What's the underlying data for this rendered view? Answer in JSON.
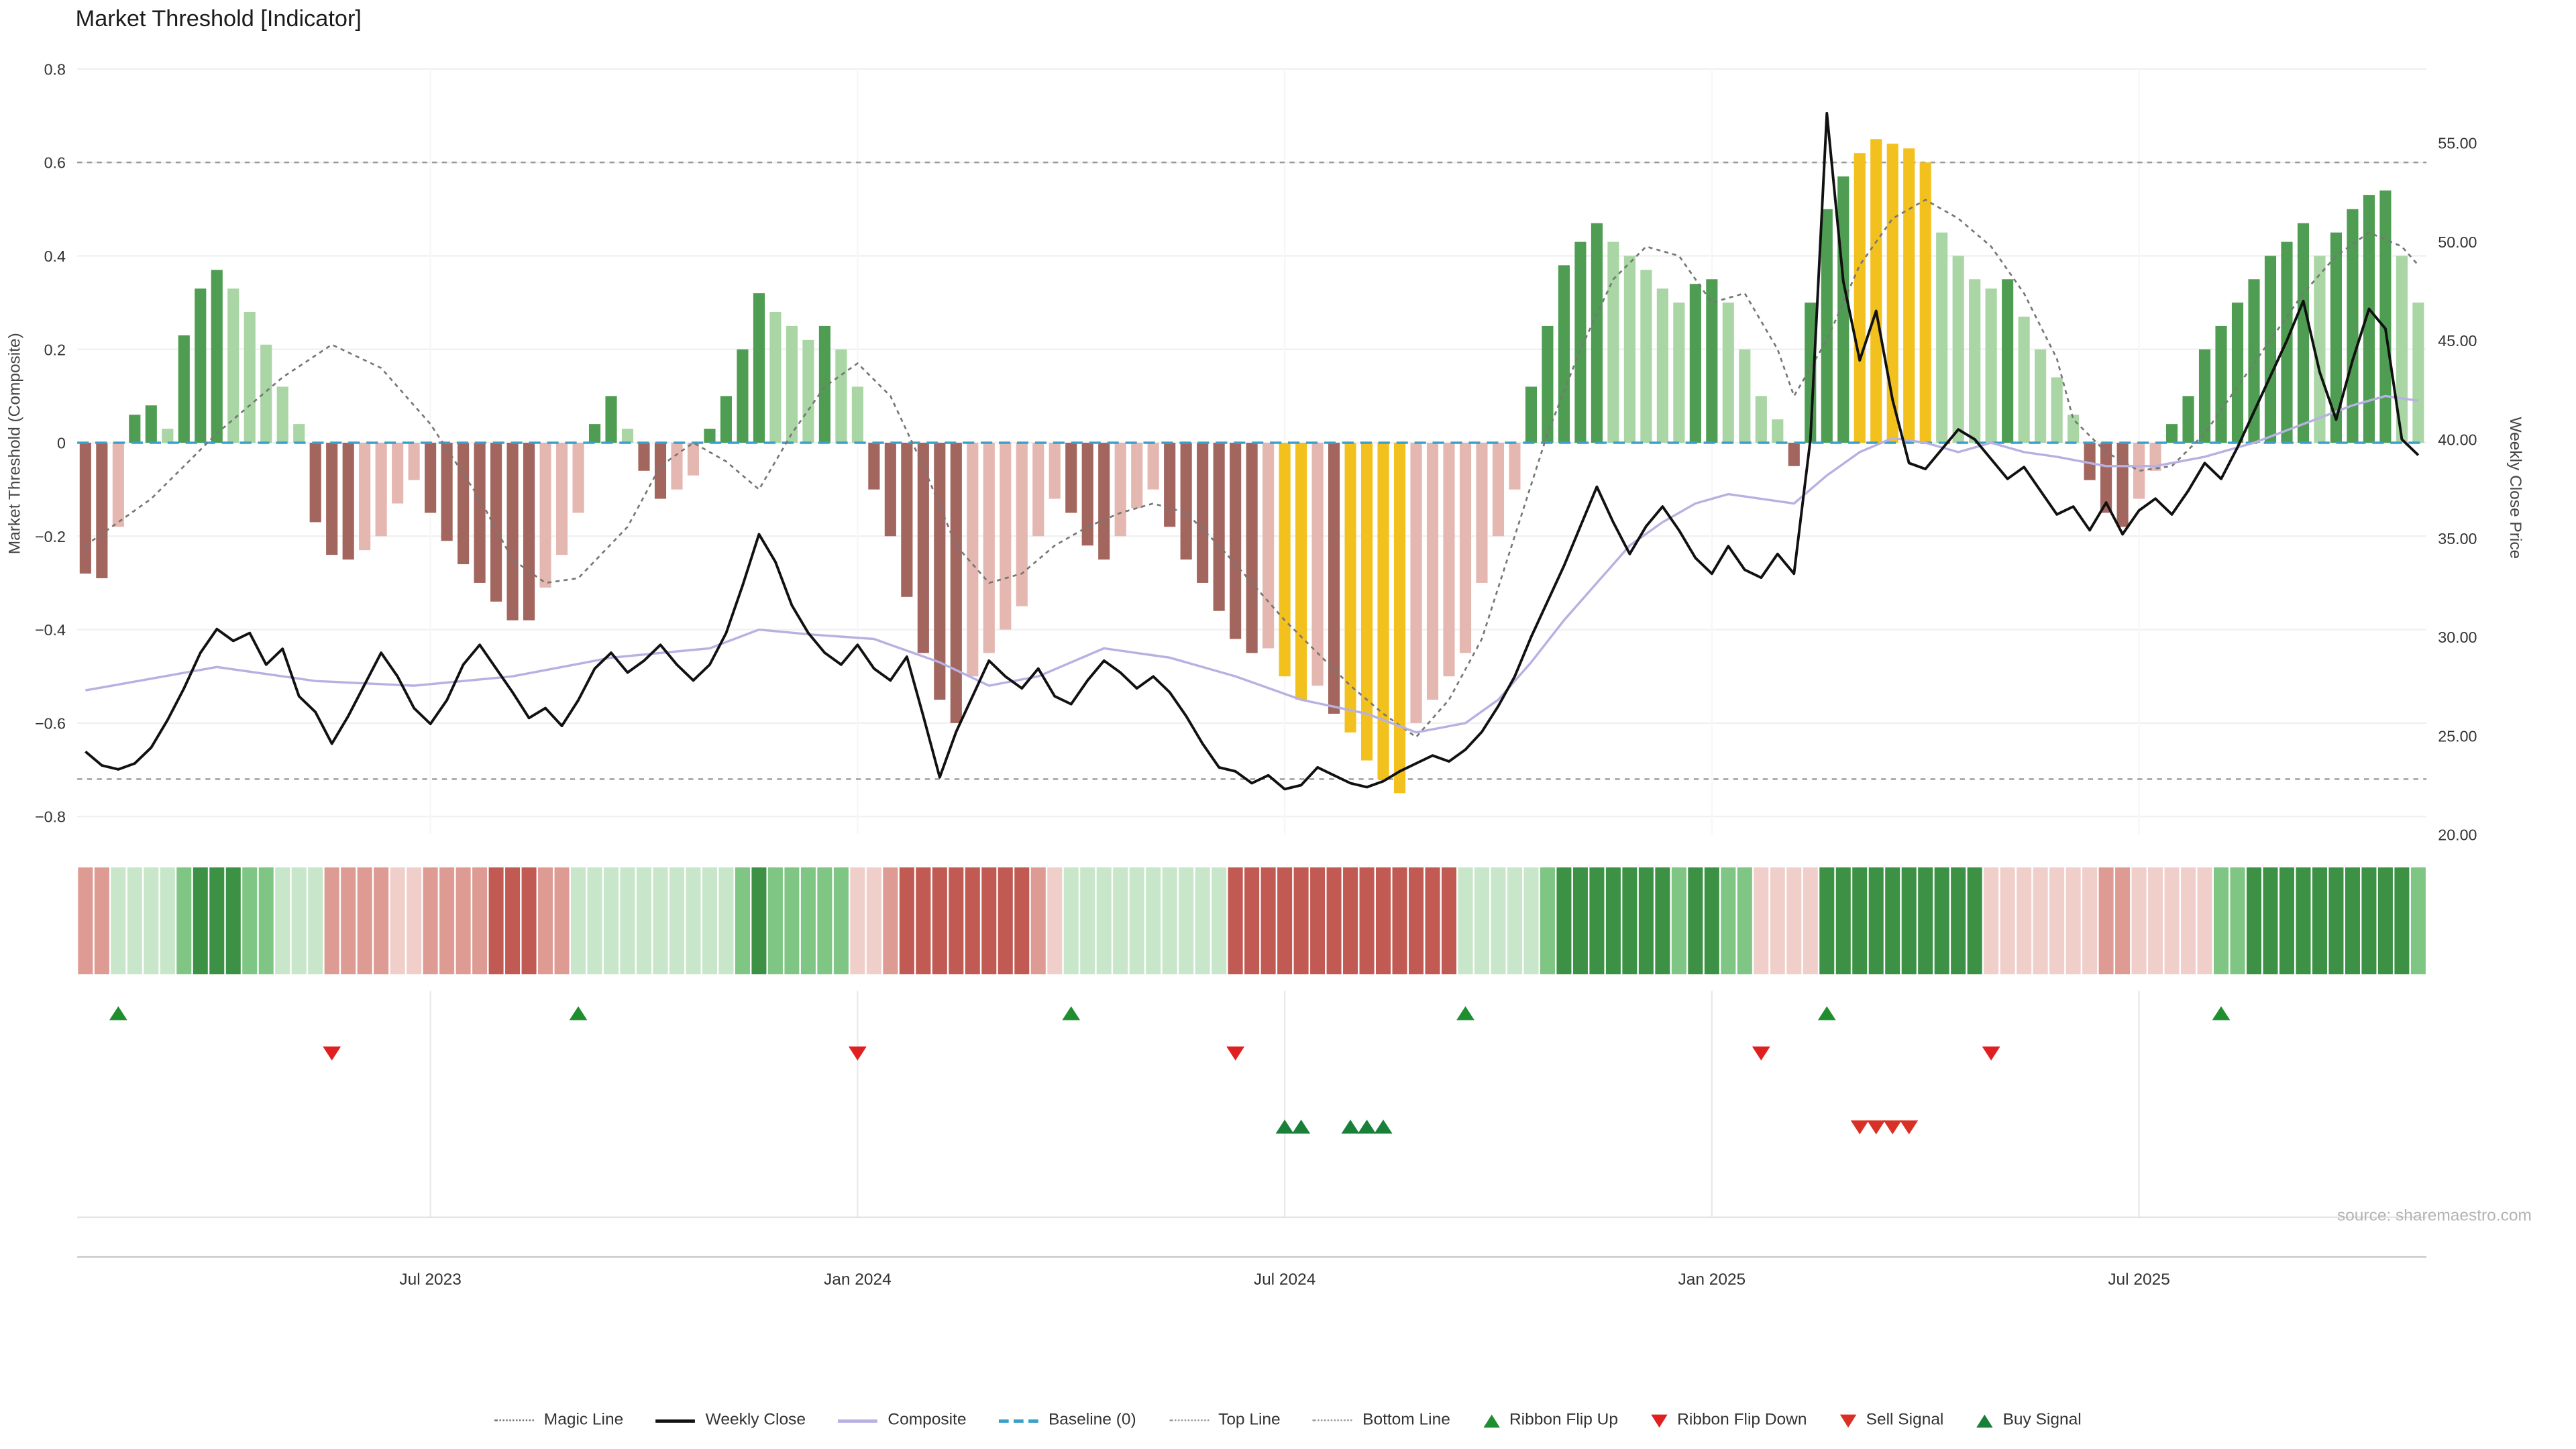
{
  "title": "Market Threshold [Indicator]",
  "source": "source: sharemaestro.com",
  "axes": {
    "left_label": "Market Threshold (Composite)",
    "right_label": "Weekly Close Price",
    "left_ticks": [
      "0.8",
      "0.6",
      "0.4",
      "0.2",
      "0",
      "−0.2",
      "−0.4",
      "−0.6",
      "−0.8"
    ],
    "left_tick_values": [
      0.8,
      0.6,
      0.4,
      0.2,
      0,
      -0.2,
      -0.4,
      -0.6,
      -0.8
    ],
    "right_ticks": [
      "55.00",
      "50.00",
      "45.00",
      "40.00",
      "35.00",
      "30.00",
      "25.00",
      "20.00"
    ],
    "right_tick_values": [
      55,
      50,
      45,
      40,
      35,
      30,
      25,
      20
    ],
    "x_ticks": [
      {
        "label": "Jul 2023",
        "week": 21
      },
      {
        "label": "Jan 2024",
        "week": 47
      },
      {
        "label": "Jul 2024",
        "week": 73
      },
      {
        "label": "Jan 2025",
        "week": 99
      },
      {
        "label": "Jul 2025",
        "week": 125
      }
    ]
  },
  "chart_data": {
    "type": "bar",
    "subtype": "composite-indicator-with-price-line-ribbon-and-signals",
    "frequency": "weekly",
    "title": "Market Threshold [Indicator]",
    "left_axis": {
      "label": "Market Threshold (Composite)",
      "range": [
        -0.8,
        0.8
      ]
    },
    "right_axis": {
      "label": "Weekly Close Price",
      "range": [
        20,
        55
      ]
    },
    "top_line": 0.6,
    "bottom_line": -0.72,
    "baseline": 0,
    "composite_bars": [
      -0.28,
      -0.29,
      -0.18,
      0.06,
      0.08,
      0.03,
      0.23,
      0.33,
      0.37,
      0.33,
      0.28,
      0.21,
      0.12,
      0.04,
      -0.17,
      -0.24,
      -0.25,
      -0.23,
      -0.2,
      -0.13,
      -0.08,
      -0.15,
      -0.21,
      -0.26,
      -0.3,
      -0.34,
      -0.38,
      -0.38,
      -0.31,
      -0.24,
      -0.15,
      0.04,
      0.1,
      0.03,
      -0.06,
      -0.12,
      -0.1,
      -0.07,
      0.03,
      0.1,
      0.2,
      0.32,
      0.28,
      0.25,
      0.22,
      0.25,
      0.2,
      0.12,
      -0.1,
      -0.2,
      -0.33,
      -0.45,
      -0.55,
      -0.6,
      -0.5,
      -0.45,
      -0.4,
      -0.35,
      -0.2,
      -0.12,
      -0.15,
      -0.22,
      -0.25,
      -0.2,
      -0.14,
      -0.1,
      -0.18,
      -0.25,
      -0.3,
      -0.36,
      -0.42,
      -0.45,
      -0.44,
      -0.5,
      -0.55,
      -0.52,
      -0.58,
      -0.62,
      -0.68,
      -0.72,
      -0.75,
      -0.6,
      -0.55,
      -0.5,
      -0.45,
      -0.3,
      -0.2,
      -0.1,
      0.12,
      0.25,
      0.38,
      0.43,
      0.47,
      0.43,
      0.4,
      0.37,
      0.33,
      0.3,
      0.34,
      0.35,
      0.3,
      0.2,
      0.1,
      0.05,
      -0.05,
      0.3,
      0.5,
      0.57,
      0.62,
      0.65,
      0.64,
      0.63,
      0.6,
      0.45,
      0.4,
      0.35,
      0.33,
      0.35,
      0.27,
      0.2,
      0.14,
      0.06,
      -0.08,
      -0.15,
      -0.18,
      -0.12,
      -0.06,
      0.04,
      0.1,
      0.2,
      0.25,
      0.3,
      0.35,
      0.4,
      0.43,
      0.47,
      0.4,
      0.45,
      0.5,
      0.53,
      0.54,
      0.4,
      0.3
    ],
    "yellow_bars": [
      73,
      74,
      77,
      78,
      79,
      80,
      108,
      109,
      110,
      111,
      112
    ],
    "weekly_close": [
      24.2,
      23.5,
      23.3,
      23.6,
      24.4,
      25.8,
      27.4,
      29.2,
      30.4,
      29.8,
      30.2,
      28.6,
      29.4,
      27.0,
      26.2,
      24.6,
      26.0,
      27.6,
      29.2,
      28.0,
      26.4,
      25.6,
      26.8,
      28.6,
      29.6,
      28.4,
      27.2,
      25.9,
      26.4,
      25.5,
      26.8,
      28.4,
      29.2,
      28.2,
      28.8,
      29.6,
      28.6,
      27.8,
      28.6,
      30.2,
      32.6,
      35.2,
      33.8,
      31.6,
      30.2,
      29.2,
      28.6,
      29.6,
      28.4,
      27.8,
      29.0,
      26.0,
      22.9,
      25.2,
      27.0,
      28.8,
      28.0,
      27.4,
      28.4,
      27.0,
      26.6,
      27.8,
      28.8,
      28.2,
      27.4,
      28.0,
      27.2,
      26.0,
      24.6,
      23.4,
      23.2,
      22.6,
      23.0,
      22.3,
      22.5,
      23.4,
      23.0,
      22.6,
      22.4,
      22.7,
      23.2,
      23.6,
      24.0,
      23.7,
      24.3,
      25.2,
      26.5,
      28.0,
      30.0,
      31.8,
      33.6,
      35.6,
      37.6,
      35.8,
      34.2,
      35.6,
      36.6,
      35.4,
      34.0,
      33.2,
      34.6,
      33.4,
      33.0,
      34.2,
      33.2,
      40.0,
      56.5,
      48.0,
      44.0,
      46.5,
      42.0,
      38.8,
      38.5,
      39.5,
      40.5,
      40.0,
      39.0,
      38.0,
      38.6,
      37.4,
      36.2,
      36.6,
      35.4,
      36.8,
      35.2,
      36.4,
      37.0,
      36.2,
      37.4,
      38.8,
      38.0,
      39.6,
      41.4,
      43.2,
      45.0,
      47.0,
      43.4,
      41.0,
      44.0,
      46.6,
      45.6,
      40.0,
      39.2
    ],
    "composite_line_anchors": [
      [
        0,
        -0.53
      ],
      [
        8,
        -0.48
      ],
      [
        14,
        -0.51
      ],
      [
        20,
        -0.52
      ],
      [
        26,
        -0.5
      ],
      [
        32,
        -0.46
      ],
      [
        38,
        -0.44
      ],
      [
        41,
        -0.4
      ],
      [
        44,
        -0.41
      ],
      [
        48,
        -0.42
      ],
      [
        52,
        -0.47
      ],
      [
        55,
        -0.52
      ],
      [
        58,
        -0.5
      ],
      [
        62,
        -0.44
      ],
      [
        66,
        -0.46
      ],
      [
        70,
        -0.5
      ],
      [
        74,
        -0.55
      ],
      [
        78,
        -0.58
      ],
      [
        81,
        -0.62
      ],
      [
        84,
        -0.6
      ],
      [
        86,
        -0.55
      ],
      [
        88,
        -0.47
      ],
      [
        90,
        -0.38
      ],
      [
        92,
        -0.3
      ],
      [
        94,
        -0.22
      ],
      [
        96,
        -0.17
      ],
      [
        98,
        -0.13
      ],
      [
        100,
        -0.11
      ],
      [
        102,
        -0.12
      ],
      [
        104,
        -0.13
      ],
      [
        106,
        -0.07
      ],
      [
        108,
        -0.02
      ],
      [
        110,
        0.01
      ],
      [
        112,
        0.0
      ],
      [
        114,
        -0.02
      ],
      [
        116,
        0.0
      ],
      [
        118,
        -0.02
      ],
      [
        120,
        -0.03
      ],
      [
        123,
        -0.05
      ],
      [
        126,
        -0.05
      ],
      [
        129,
        -0.03
      ],
      [
        132,
        0.0
      ],
      [
        135,
        0.04
      ],
      [
        138,
        0.08
      ],
      [
        140,
        0.1
      ],
      [
        142,
        0.09
      ]
    ],
    "magic_line_anchors": [
      [
        0,
        -0.22
      ],
      [
        4,
        -0.12
      ],
      [
        8,
        0.02
      ],
      [
        12,
        0.14
      ],
      [
        15,
        0.21
      ],
      [
        18,
        0.16
      ],
      [
        21,
        0.04
      ],
      [
        24,
        -0.12
      ],
      [
        26,
        -0.25
      ],
      [
        28,
        -0.3
      ],
      [
        30,
        -0.29
      ],
      [
        33,
        -0.18
      ],
      [
        35,
        -0.05
      ],
      [
        37,
        0.0
      ],
      [
        39,
        -0.04
      ],
      [
        41,
        -0.1
      ],
      [
        43,
        0.02
      ],
      [
        45,
        0.12
      ],
      [
        47,
        0.17
      ],
      [
        49,
        0.1
      ],
      [
        51,
        -0.05
      ],
      [
        53,
        -0.22
      ],
      [
        55,
        -0.3
      ],
      [
        57,
        -0.28
      ],
      [
        59,
        -0.22
      ],
      [
        61,
        -0.18
      ],
      [
        63,
        -0.15
      ],
      [
        65,
        -0.13
      ],
      [
        67,
        -0.15
      ],
      [
        69,
        -0.22
      ],
      [
        71,
        -0.3
      ],
      [
        73,
        -0.38
      ],
      [
        75,
        -0.45
      ],
      [
        77,
        -0.52
      ],
      [
        79,
        -0.58
      ],
      [
        81,
        -0.63
      ],
      [
        83,
        -0.55
      ],
      [
        85,
        -0.42
      ],
      [
        87,
        -0.2
      ],
      [
        89,
        0.02
      ],
      [
        91,
        0.2
      ],
      [
        93,
        0.35
      ],
      [
        95,
        0.42
      ],
      [
        97,
        0.4
      ],
      [
        99,
        0.3
      ],
      [
        101,
        0.32
      ],
      [
        103,
        0.2
      ],
      [
        104,
        0.1
      ],
      [
        106,
        0.22
      ],
      [
        108,
        0.38
      ],
      [
        110,
        0.48
      ],
      [
        112,
        0.52
      ],
      [
        114,
        0.48
      ],
      [
        116,
        0.42
      ],
      [
        118,
        0.32
      ],
      [
        120,
        0.18
      ],
      [
        121,
        0.05
      ],
      [
        123,
        -0.02
      ],
      [
        125,
        -0.06
      ],
      [
        127,
        -0.05
      ],
      [
        129,
        0.02
      ],
      [
        131,
        0.12
      ],
      [
        133,
        0.22
      ],
      [
        135,
        0.32
      ],
      [
        137,
        0.4
      ],
      [
        139,
        0.45
      ],
      [
        141,
        0.42
      ],
      [
        142,
        0.38
      ]
    ],
    "ribbon_flip_up": [
      2,
      30,
      60,
      84,
      106,
      130
    ],
    "ribbon_flip_down": [
      15,
      47,
      70,
      102,
      116
    ],
    "buy_signals": [
      73,
      74,
      77,
      78,
      79
    ],
    "sell_signals": [
      108,
      109,
      110,
      111
    ]
  },
  "legend": {
    "items": [
      {
        "label": "Magic Line",
        "marker": "dotted-line",
        "color": "#777777"
      },
      {
        "label": "Weekly Close",
        "marker": "solid-line",
        "color": "#111111"
      },
      {
        "label": "Composite",
        "marker": "solid-line",
        "color": "#b7b1e2"
      },
      {
        "label": "Baseline (0)",
        "marker": "dashed-line",
        "color": "#3aa0c9"
      },
      {
        "label": "Top Line",
        "marker": "dotted-line",
        "color": "#999999"
      },
      {
        "label": "Bottom Line",
        "marker": "dotted-line",
        "color": "#999999"
      },
      {
        "label": "Ribbon Flip Up",
        "marker": "triangle-up",
        "color": "#1e8e2e"
      },
      {
        "label": "Ribbon Flip Down",
        "marker": "triangle-down",
        "color": "#e02020"
      },
      {
        "label": "Sell Signal",
        "marker": "triangle-down",
        "color": "#d93025"
      },
      {
        "label": "Buy Signal",
        "marker": "triangle-up",
        "color": "#188038"
      }
    ]
  },
  "colors": {
    "bar_green_dark": "#4f9d53",
    "bar_green_light": "#a9d6a4",
    "bar_red_dark": "#a2665f",
    "bar_red_light": "#e5b7b1",
    "signal_yellow": "#f2c11e",
    "ribbon_green_dark": "#3c9144",
    "ribbon_green_mid": "#7fc583",
    "ribbon_green_light": "#c8e6c9",
    "ribbon_red_dark": "#c05a52",
    "ribbon_red_mid": "#dd9b94",
    "ribbon_red_light": "#f0cfcb",
    "weekly_close": "#111111",
    "composite_line": "#b7b1e2",
    "magic_line": "#777777",
    "top_bottom_line": "#999999",
    "baseline": "#3aa0c9",
    "flip_up": "#1e8e2e",
    "flip_down": "#e02020",
    "buy": "#188038",
    "sell": "#d93025",
    "grid": "#f1f1f1",
    "grid_vertical": "#eaeaea",
    "axis_text": "#444444",
    "tick_text": "#333333"
  }
}
